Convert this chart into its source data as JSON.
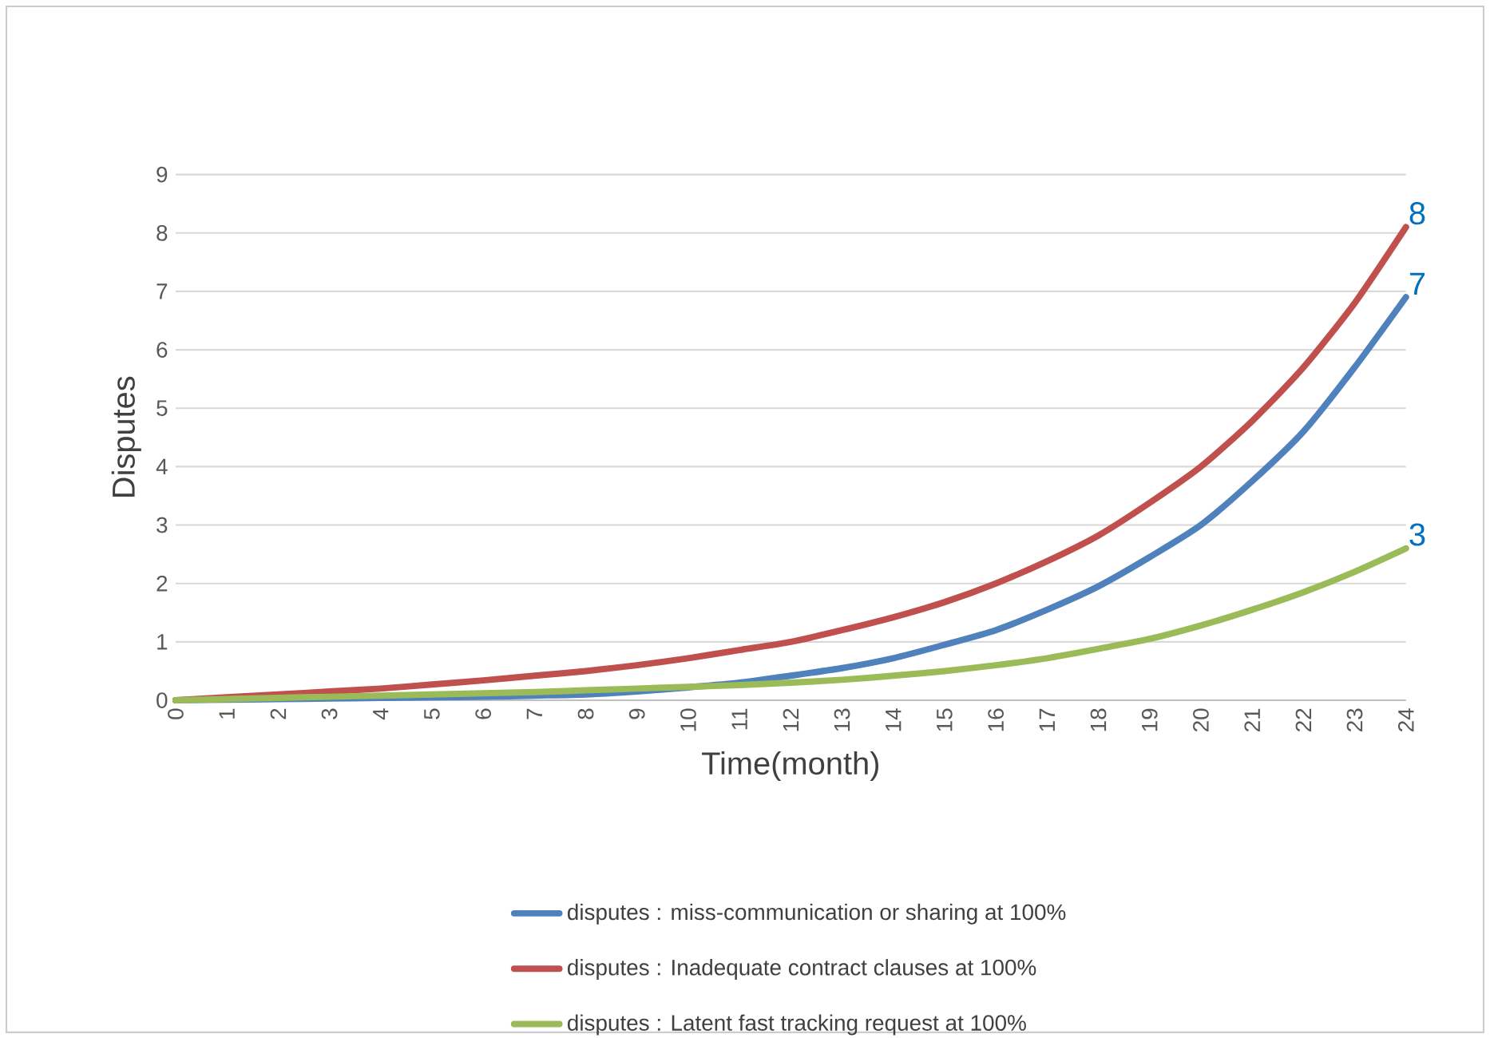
{
  "chart_data": {
    "type": "line",
    "xlabel": "Time(month)",
    "ylabel": "Disputes",
    "x": [
      0,
      1,
      2,
      3,
      4,
      5,
      6,
      7,
      8,
      9,
      10,
      11,
      12,
      13,
      14,
      15,
      16,
      17,
      18,
      19,
      20,
      21,
      22,
      23,
      24
    ],
    "xlim": [
      0,
      24
    ],
    "xticks": [
      0,
      1,
      2,
      3,
      4,
      5,
      6,
      7,
      8,
      9,
      10,
      11,
      12,
      13,
      14,
      15,
      16,
      17,
      18,
      19,
      20,
      21,
      22,
      23,
      24
    ],
    "ylim": [
      0,
      9
    ],
    "yticks": [
      0,
      1,
      2,
      3,
      4,
      5,
      6,
      7,
      8,
      9
    ],
    "grid": "y",
    "legend": "bottom",
    "series": [
      {
        "name": "disputes : miss-communication or sharing at 100%",
        "color": "#4f81bd",
        "values": [
          0,
          0.01,
          0.02,
          0.03,
          0.04,
          0.05,
          0.06,
          0.08,
          0.1,
          0.15,
          0.22,
          0.3,
          0.42,
          0.55,
          0.72,
          0.95,
          1.2,
          1.55,
          1.95,
          2.45,
          3.0,
          3.75,
          4.6,
          5.7,
          6.9
        ],
        "value_labels": [
          null,
          null,
          null,
          null,
          null,
          null,
          null,
          null,
          null,
          null,
          null,
          null,
          null,
          null,
          null,
          null,
          null,
          null,
          null,
          null,
          null,
          null,
          null,
          null,
          "7"
        ]
      },
      {
        "name": "disputes : Inadequate contract clauses at 100%",
        "color": "#c0504d",
        "values": [
          0,
          0.05,
          0.1,
          0.15,
          0.2,
          0.27,
          0.34,
          0.42,
          0.5,
          0.6,
          0.72,
          0.86,
          1.0,
          1.2,
          1.42,
          1.68,
          2.0,
          2.38,
          2.82,
          3.38,
          4.0,
          4.78,
          5.7,
          6.8,
          8.1
        ],
        "value_labels": [
          null,
          null,
          null,
          null,
          null,
          null,
          null,
          null,
          null,
          null,
          null,
          null,
          null,
          null,
          null,
          null,
          null,
          null,
          null,
          null,
          null,
          null,
          null,
          null,
          "8"
        ]
      },
      {
        "name": "disputes : Latent fast tracking request at 100%",
        "color": "#9bbb59",
        "values": [
          0,
          0.02,
          0.04,
          0.06,
          0.08,
          0.1,
          0.12,
          0.14,
          0.17,
          0.2,
          0.23,
          0.26,
          0.3,
          0.35,
          0.42,
          0.5,
          0.6,
          0.72,
          0.88,
          1.05,
          1.28,
          1.55,
          1.85,
          2.2,
          2.6
        ],
        "value_labels": [
          null,
          null,
          null,
          null,
          null,
          null,
          null,
          null,
          null,
          null,
          null,
          null,
          null,
          null,
          null,
          null,
          null,
          null,
          null,
          null,
          null,
          null,
          null,
          null,
          "3"
        ]
      }
    ]
  }
}
